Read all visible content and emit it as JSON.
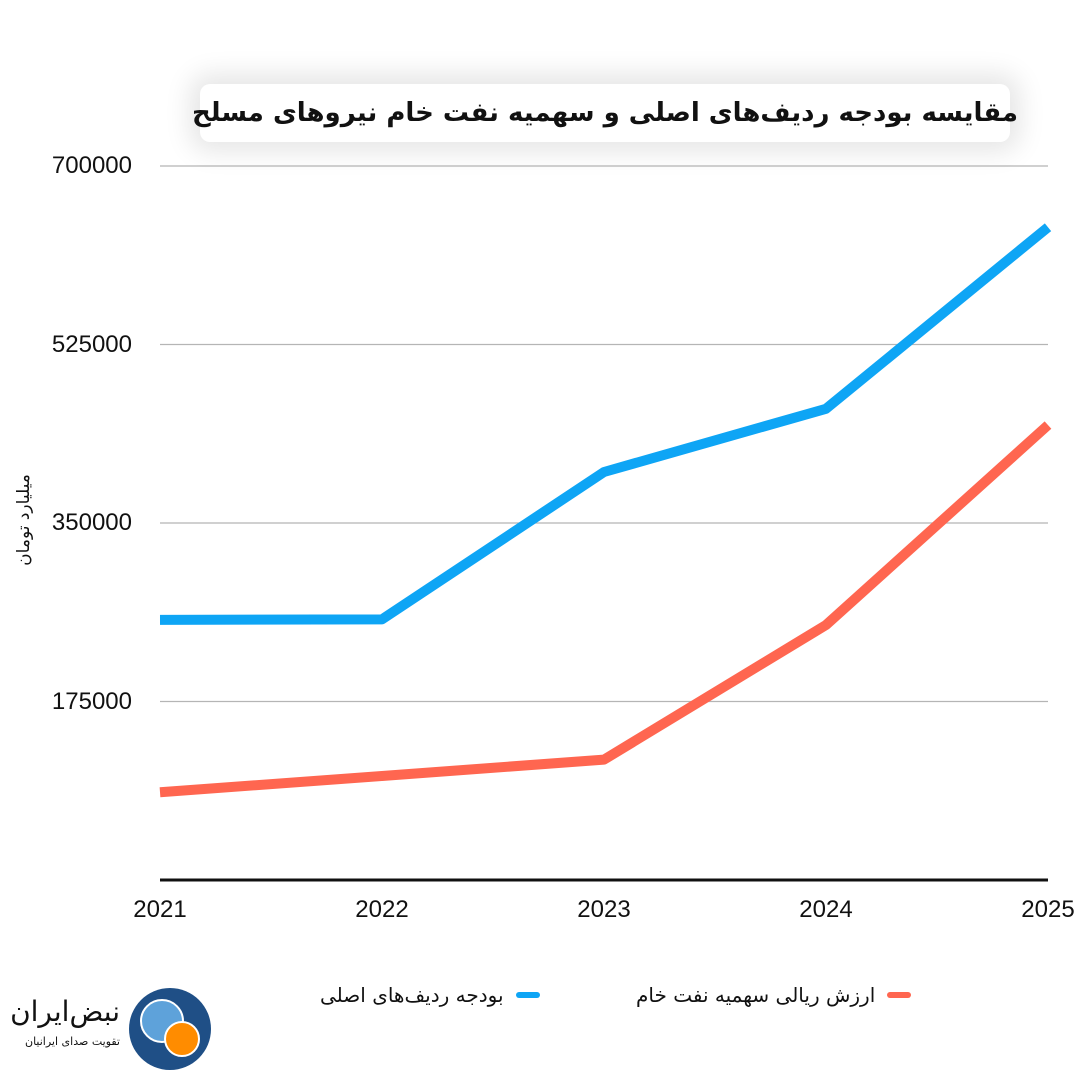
{
  "chart_data": {
    "type": "line",
    "title": "مقایسه بودجه ردیف‌های اصلی و سهمیه نفت خام نیروهای مسلح",
    "ylabel": "میلیارد تومان",
    "xlabel": "",
    "categories": [
      "2021",
      "2022",
      "2023",
      "2024",
      "2025"
    ],
    "yticks": [
      "700000",
      "525000",
      "350000",
      "175000"
    ],
    "ylim": [
      0,
      700000
    ],
    "grid": true,
    "legend_position": "bottom",
    "series": [
      {
        "name": "بودجه ردیف‌های اصلی",
        "color": "#0ea5f5",
        "values": [
          255000,
          255500,
          400000,
          462000,
          640000
        ]
      },
      {
        "name": "ارزش ریالی سهمیه نفت خام",
        "color": "#ff6650",
        "values": [
          86000,
          102000,
          118000,
          250000,
          446000
        ]
      }
    ]
  },
  "logo": {
    "name": "نبض‌ایران",
    "tagline": "تقویت صدای ایرانیان",
    "colors": {
      "ring": "#1f4f86",
      "inner": "#5ea2da",
      "dot": "#ff8c00"
    }
  }
}
